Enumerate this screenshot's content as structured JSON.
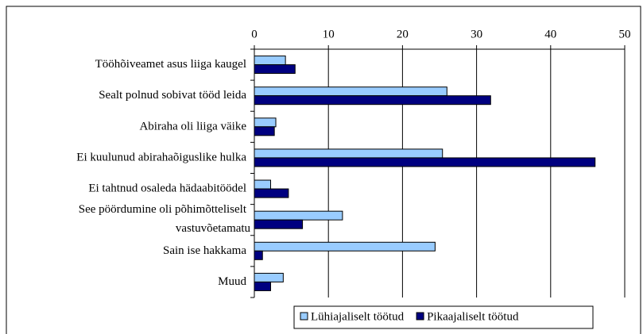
{
  "chart_data": {
    "type": "bar",
    "orientation": "horizontal",
    "categories": [
      "Tööhõiveamet asus liiga kaugel",
      "Sealt polnud sobivat tööd leida",
      "Abiraha oli liiga väike",
      "Ei kuulunud abirahaõiguslike hulka",
      "Ei tahtnud osaleda hädaabitöödel",
      "See pöördumine oli põhimõtteliselt vastuvõetamatu",
      "Sain ise hakkama",
      "Muud"
    ],
    "series": [
      {
        "name": "Lühiajaliselt töötud",
        "color": "#99ccff",
        "values": [
          4.2,
          26,
          2.9,
          25.4,
          2.2,
          11.9,
          24.4,
          3.9
        ]
      },
      {
        "name": "Pikaajaliselt töötud",
        "color": "#000080",
        "values": [
          5.5,
          31.9,
          2.7,
          46,
          4.6,
          6.5,
          1.1,
          2.2
        ]
      }
    ],
    "xlim": [
      0,
      50
    ],
    "xticks": [
      0,
      10,
      20,
      30,
      40,
      50
    ],
    "grid": true,
    "legend": "bottom"
  }
}
